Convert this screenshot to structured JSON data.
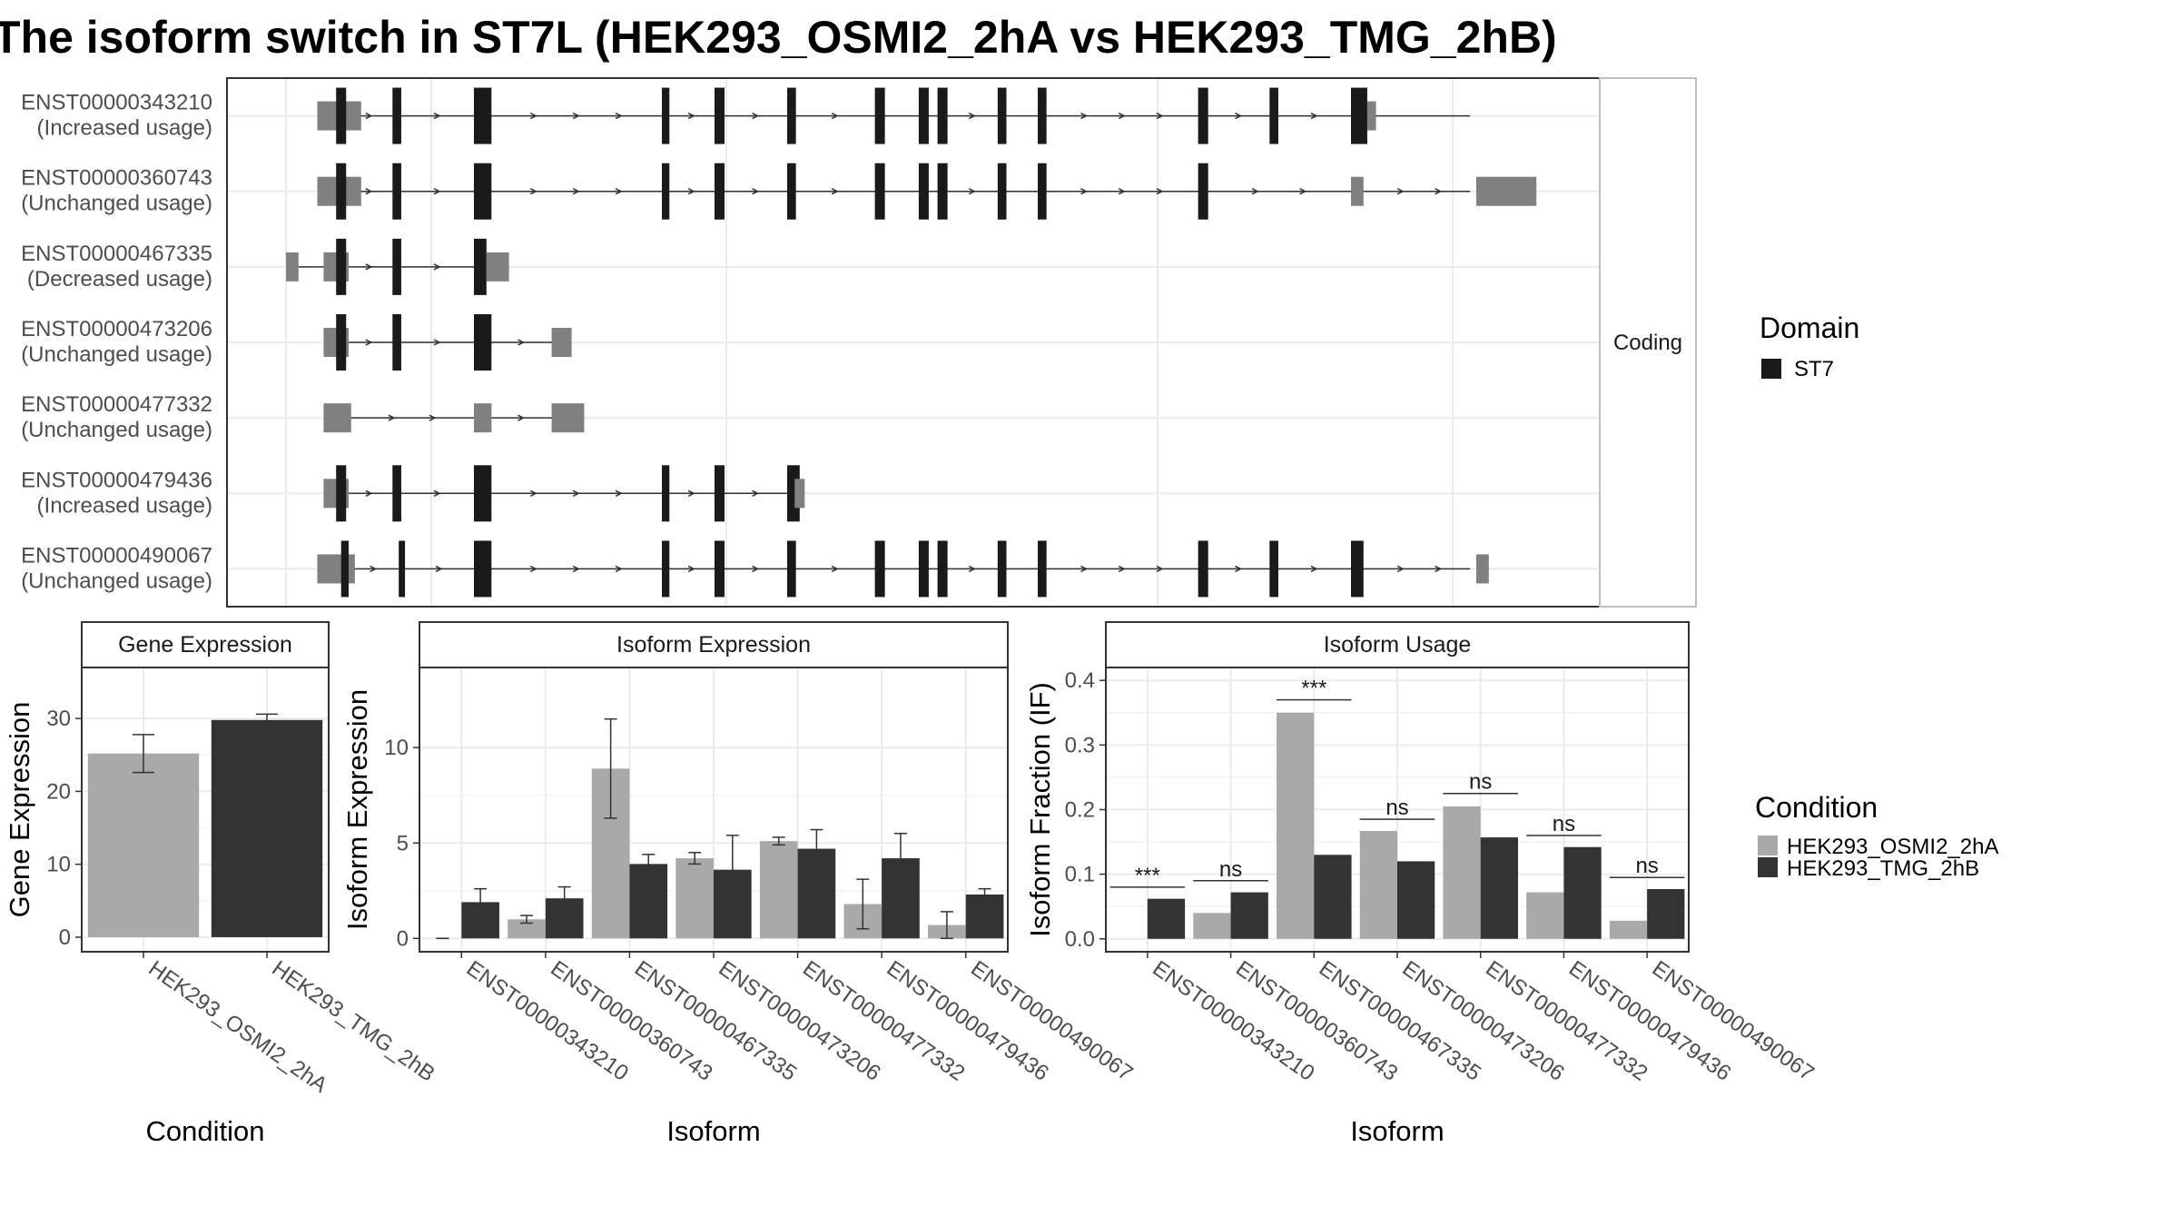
{
  "title": "The isoform switch in ST7L (HEK293_OSMI2_2hA vs HEK293_TMG_2hB)",
  "colors": {
    "condition_a": "#a9a9a9",
    "condition_b": "#333333",
    "coding": "#1a1a1a",
    "utr": "#808080",
    "panel_border": "#333333",
    "strip_bg": "#ffffff",
    "grid": "#ebebeb"
  },
  "structure": {
    "strip_label": "Coding",
    "x_range": [
      0,
      1000
    ],
    "isoforms": [
      {
        "id": "ENST00000343210",
        "label": "ENST00000343210",
        "status": "(Increased usage)",
        "line": [
          35,
          945
        ],
        "exons": [
          [
            25,
            60,
            "utr"
          ],
          [
            40,
            48,
            "cds"
          ],
          [
            85,
            92,
            "cds"
          ],
          [
            150,
            164,
            "cds"
          ],
          [
            300,
            306,
            "cds"
          ],
          [
            342,
            350,
            "cds"
          ],
          [
            400,
            407,
            "cds"
          ],
          [
            470,
            478,
            "cds"
          ],
          [
            505,
            513,
            "cds"
          ],
          [
            520,
            528,
            "cds"
          ],
          [
            568,
            575,
            "cds"
          ],
          [
            600,
            607,
            "cds"
          ],
          [
            728,
            736,
            "cds"
          ],
          [
            785,
            792,
            "cds"
          ],
          [
            850,
            863,
            "cds"
          ],
          [
            863,
            870,
            "utr"
          ]
        ]
      },
      {
        "id": "ENST00000360743",
        "label": "ENST00000360743",
        "status": "(Unchanged usage)",
        "line": [
          35,
          945
        ],
        "exons": [
          [
            25,
            60,
            "utr"
          ],
          [
            40,
            48,
            "cds"
          ],
          [
            85,
            92,
            "cds"
          ],
          [
            150,
            164,
            "cds"
          ],
          [
            300,
            306,
            "cds"
          ],
          [
            342,
            350,
            "cds"
          ],
          [
            400,
            407,
            "cds"
          ],
          [
            470,
            478,
            "cds"
          ],
          [
            505,
            513,
            "cds"
          ],
          [
            520,
            528,
            "cds"
          ],
          [
            568,
            575,
            "cds"
          ],
          [
            600,
            607,
            "cds"
          ],
          [
            728,
            736,
            "cds"
          ],
          [
            850,
            860,
            "utr"
          ],
          [
            950,
            998,
            "utr"
          ]
        ]
      },
      {
        "id": "ENST00000467335",
        "label": "ENST00000467335",
        "status": "(Decreased usage)",
        "line": [
          8,
          152
        ],
        "exons": [
          [
            0,
            10,
            "utr"
          ],
          [
            30,
            50,
            "utr"
          ],
          [
            40,
            48,
            "cds"
          ],
          [
            85,
            92,
            "cds"
          ],
          [
            150,
            160,
            "cds"
          ],
          [
            160,
            178,
            "utr"
          ]
        ]
      },
      {
        "id": "ENST00000473206",
        "label": "ENST00000473206",
        "status": "(Unchanged usage)",
        "line": [
          35,
          220
        ],
        "exons": [
          [
            30,
            50,
            "utr"
          ],
          [
            40,
            48,
            "cds"
          ],
          [
            85,
            92,
            "cds"
          ],
          [
            150,
            164,
            "cds"
          ],
          [
            212,
            228,
            "utr"
          ]
        ]
      },
      {
        "id": "ENST00000477332",
        "label": "ENST00000477332",
        "status": "(Unchanged usage)",
        "line": [
          35,
          220
        ],
        "exons": [
          [
            30,
            52,
            "utr"
          ],
          [
            150,
            164,
            "utr"
          ],
          [
            212,
            238,
            "utr"
          ]
        ]
      },
      {
        "id": "ENST00000479436",
        "label": "ENST00000479436",
        "status": "(Increased usage)",
        "line": [
          35,
          406
        ],
        "exons": [
          [
            30,
            50,
            "utr"
          ],
          [
            40,
            48,
            "cds"
          ],
          [
            85,
            92,
            "cds"
          ],
          [
            150,
            164,
            "cds"
          ],
          [
            300,
            306,
            "cds"
          ],
          [
            342,
            350,
            "cds"
          ],
          [
            400,
            410,
            "cds"
          ],
          [
            406,
            414,
            "utr"
          ]
        ]
      },
      {
        "id": "ENST00000490067",
        "label": "ENST00000490067",
        "status": "(Unchanged usage)",
        "line": [
          35,
          945
        ],
        "exons": [
          [
            25,
            55,
            "utr"
          ],
          [
            44,
            50,
            "cds"
          ],
          [
            90,
            95,
            "cds"
          ],
          [
            150,
            164,
            "cds"
          ],
          [
            300,
            306,
            "cds"
          ],
          [
            342,
            350,
            "cds"
          ],
          [
            400,
            407,
            "cds"
          ],
          [
            470,
            478,
            "cds"
          ],
          [
            505,
            513,
            "cds"
          ],
          [
            520,
            528,
            "cds"
          ],
          [
            568,
            575,
            "cds"
          ],
          [
            600,
            607,
            "cds"
          ],
          [
            728,
            736,
            "cds"
          ],
          [
            785,
            792,
            "cds"
          ],
          [
            850,
            860,
            "cds"
          ],
          [
            950,
            960,
            "utr"
          ]
        ]
      }
    ]
  },
  "domain_legend": {
    "title": "Domain",
    "items": [
      {
        "label": "ST7",
        "color": "#1a1a1a"
      }
    ]
  },
  "condition_legend": {
    "title": "Condition",
    "items": [
      {
        "label": "HEK293_OSMI2_2hA",
        "color": "#a9a9a9"
      },
      {
        "label": "HEK293_TMG_2hB",
        "color": "#333333"
      }
    ]
  },
  "chart_data": [
    {
      "type": "bar",
      "title": "Gene Expression",
      "xlabel": "Condition",
      "ylabel": "Gene Expression",
      "ylim": [
        -2,
        37
      ],
      "yticks": [
        0,
        10,
        20,
        30
      ],
      "categories": [
        "HEK293_OSMI2_2hA",
        "HEK293_TMG_2hB"
      ],
      "values": [
        25.2,
        29.8
      ],
      "errors": [
        [
          22.6,
          27.8
        ],
        [
          29.0,
          30.6
        ]
      ]
    },
    {
      "type": "bar",
      "title": "Isoform Expression",
      "xlabel": "Isoform",
      "ylabel": "Isoform Expression",
      "ylim": [
        -0.7,
        14.2
      ],
      "yticks": [
        0,
        5,
        10
      ],
      "categories": [
        "ENST00000343210",
        "ENST00000360743",
        "ENST00000467335",
        "ENST00000473206",
        "ENST00000477332",
        "ENST00000479436",
        "ENST00000490067"
      ],
      "series": [
        {
          "name": "HEK293_OSMI2_2hA",
          "values": [
            0.0,
            1.0,
            8.9,
            4.2,
            5.1,
            1.8,
            0.7
          ],
          "errors": [
            [
              0.0,
              0.0
            ],
            [
              0.8,
              1.2
            ],
            [
              6.3,
              11.5
            ],
            [
              3.9,
              4.5
            ],
            [
              4.9,
              5.3
            ],
            [
              0.5,
              3.1
            ],
            [
              0.0,
              1.4
            ]
          ]
        },
        {
          "name": "HEK293_TMG_2hB",
          "values": [
            1.9,
            2.1,
            3.9,
            3.6,
            4.7,
            4.2,
            2.3
          ],
          "errors": [
            [
              1.2,
              2.6
            ],
            [
              1.5,
              2.7
            ],
            [
              3.3,
              4.4
            ],
            [
              1.8,
              5.4
            ],
            [
              3.8,
              5.7
            ],
            [
              2.9,
              5.5
            ],
            [
              2.0,
              2.6
            ]
          ]
        }
      ]
    },
    {
      "type": "bar",
      "title": "Isoform Usage",
      "xlabel": "Isoform",
      "ylabel": "Isoform Fraction (IF)",
      "ylim": [
        -0.02,
        0.42
      ],
      "yticks": [
        0.0,
        0.1,
        0.2,
        0.3,
        0.4
      ],
      "ytick_labels": [
        "0.0",
        "0.1",
        "0.2",
        "0.3",
        "0.4"
      ],
      "categories": [
        "ENST00000343210",
        "ENST00000360743",
        "ENST00000467335",
        "ENST00000473206",
        "ENST00000477332",
        "ENST00000479436",
        "ENST00000490067"
      ],
      "series": [
        {
          "name": "HEK293_OSMI2_2hA",
          "values": [
            0.0,
            0.04,
            0.35,
            0.167,
            0.205,
            0.072,
            0.028
          ]
        },
        {
          "name": "HEK293_TMG_2hB",
          "values": [
            0.062,
            0.072,
            0.13,
            0.12,
            0.157,
            0.142,
            0.077
          ]
        }
      ],
      "significance": [
        "***",
        "ns",
        "***",
        "ns",
        "ns",
        "ns",
        "ns"
      ],
      "significance_y": [
        0.08,
        0.09,
        0.37,
        0.185,
        0.225,
        0.16,
        0.095
      ]
    }
  ]
}
